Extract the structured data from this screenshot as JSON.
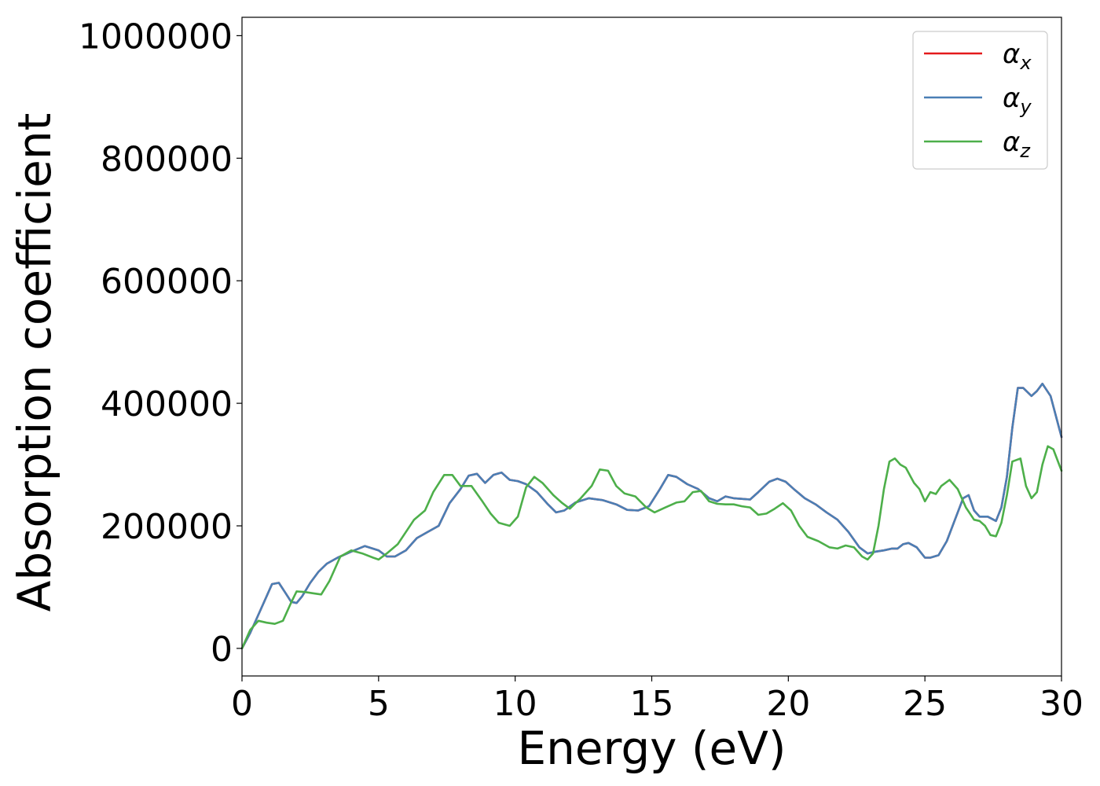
{
  "chart_data": {
    "type": "line",
    "title": "",
    "xlabel": "Energy (eV)",
    "ylabel": "Absorption coefficient",
    "xlim": [
      0,
      30
    ],
    "ylim": [
      -45000,
      1030000
    ],
    "xticks": [
      0,
      5,
      10,
      15,
      20,
      25,
      30
    ],
    "yticks": [
      0,
      200000,
      400000,
      600000,
      800000,
      1000000
    ],
    "grid": false,
    "legend_position": "top-right",
    "series": [
      {
        "name": "αx",
        "legend_base": "α",
        "legend_sub": "x",
        "color": "#e41a1c",
        "x": [
          0,
          0.3,
          0.6,
          0.9,
          1.1,
          1.35,
          1.6,
          1.8,
          2.0,
          2.2,
          2.5,
          2.8,
          3.1,
          3.5,
          4.0,
          4.5,
          5.0,
          5.3,
          5.6,
          6.0,
          6.4,
          6.8,
          7.2,
          7.6,
          8.0,
          8.3,
          8.6,
          8.9,
          9.2,
          9.5,
          9.8,
          10.1,
          10.4,
          10.8,
          11.2,
          11.5,
          11.8,
          12.2,
          12.7,
          13.2,
          13.7,
          14.1,
          14.5,
          14.9,
          15.3,
          15.6,
          15.9,
          16.3,
          16.7,
          17.1,
          17.4,
          17.7,
          18.0,
          18.3,
          18.6,
          18.9,
          19.3,
          19.6,
          19.9,
          20.2,
          20.6,
          21.0,
          21.4,
          21.8,
          22.2,
          22.6,
          22.9,
          23.2,
          23.5,
          23.8,
          24.0,
          24.2,
          24.4,
          24.7,
          25.0,
          25.2,
          25.5,
          25.8,
          26.1,
          26.4,
          26.6,
          26.8,
          27.0,
          27.3,
          27.6,
          27.8,
          28.0,
          28.2,
          28.4,
          28.6,
          28.9,
          29.1,
          29.3,
          29.6,
          30.0
        ],
        "y": [
          0,
          25000,
          55000,
          85000,
          105000,
          107000,
          90000,
          76000,
          74000,
          85000,
          107000,
          125000,
          138000,
          148000,
          158000,
          167000,
          160000,
          150000,
          150000,
          160000,
          180000,
          190000,
          200000,
          237000,
          260000,
          282000,
          285000,
          270000,
          283000,
          287000,
          275000,
          273000,
          268000,
          255000,
          235000,
          222000,
          225000,
          238000,
          245000,
          242000,
          235000,
          226000,
          225000,
          232000,
          260000,
          283000,
          280000,
          268000,
          260000,
          245000,
          240000,
          248000,
          245000,
          244000,
          243000,
          255000,
          272000,
          277000,
          272000,
          260000,
          245000,
          235000,
          222000,
          210000,
          190000,
          165000,
          155000,
          158000,
          160000,
          163000,
          163000,
          170000,
          172000,
          165000,
          148000,
          148000,
          152000,
          175000,
          210000,
          245000,
          250000,
          225000,
          215000,
          215000,
          208000,
          230000,
          280000,
          360000,
          425000,
          425000,
          412000,
          420000,
          432000,
          412000,
          345000
        ]
      },
      {
        "name": "αy",
        "legend_base": "α",
        "legend_sub": "y",
        "color": "#4a7fb5",
        "x": [
          0,
          0.3,
          0.6,
          0.9,
          1.1,
          1.35,
          1.6,
          1.8,
          2.0,
          2.2,
          2.5,
          2.8,
          3.1,
          3.5,
          4.0,
          4.5,
          5.0,
          5.3,
          5.6,
          6.0,
          6.4,
          6.8,
          7.2,
          7.6,
          8.0,
          8.3,
          8.6,
          8.9,
          9.2,
          9.5,
          9.8,
          10.1,
          10.4,
          10.8,
          11.2,
          11.5,
          11.8,
          12.2,
          12.7,
          13.2,
          13.7,
          14.1,
          14.5,
          14.9,
          15.3,
          15.6,
          15.9,
          16.3,
          16.7,
          17.1,
          17.4,
          17.7,
          18.0,
          18.3,
          18.6,
          18.9,
          19.3,
          19.6,
          19.9,
          20.2,
          20.6,
          21.0,
          21.4,
          21.8,
          22.2,
          22.6,
          22.9,
          23.2,
          23.5,
          23.8,
          24.0,
          24.2,
          24.4,
          24.7,
          25.0,
          25.2,
          25.5,
          25.8,
          26.1,
          26.4,
          26.6,
          26.8,
          27.0,
          27.3,
          27.6,
          27.8,
          28.0,
          28.2,
          28.4,
          28.6,
          28.9,
          29.1,
          29.3,
          29.6,
          30.0
        ],
        "y": [
          0,
          25000,
          55000,
          85000,
          105000,
          107000,
          90000,
          76000,
          74000,
          85000,
          107000,
          125000,
          138000,
          148000,
          158000,
          167000,
          160000,
          150000,
          150000,
          160000,
          180000,
          190000,
          200000,
          237000,
          260000,
          282000,
          285000,
          270000,
          283000,
          287000,
          275000,
          273000,
          268000,
          255000,
          235000,
          222000,
          225000,
          238000,
          245000,
          242000,
          235000,
          226000,
          225000,
          232000,
          260000,
          283000,
          280000,
          268000,
          260000,
          245000,
          240000,
          248000,
          245000,
          244000,
          243000,
          255000,
          272000,
          277000,
          272000,
          260000,
          245000,
          235000,
          222000,
          210000,
          190000,
          165000,
          155000,
          158000,
          160000,
          163000,
          163000,
          170000,
          172000,
          165000,
          148000,
          148000,
          152000,
          175000,
          210000,
          245000,
          250000,
          225000,
          215000,
          215000,
          208000,
          230000,
          280000,
          360000,
          425000,
          425000,
          412000,
          420000,
          432000,
          412000,
          345000
        ]
      },
      {
        "name": "αz",
        "legend_base": "α",
        "legend_sub": "z",
        "color": "#4daf4a",
        "x": [
          0,
          0.3,
          0.6,
          0.9,
          1.2,
          1.5,
          1.8,
          2.0,
          2.3,
          2.6,
          2.9,
          3.2,
          3.6,
          4.0,
          4.4,
          4.8,
          5.0,
          5.3,
          5.7,
          6.0,
          6.3,
          6.7,
          7.0,
          7.4,
          7.7,
          8.0,
          8.4,
          8.8,
          9.1,
          9.4,
          9.8,
          10.1,
          10.4,
          10.7,
          11.0,
          11.4,
          11.7,
          12.0,
          12.4,
          12.8,
          13.1,
          13.4,
          13.7,
          14.0,
          14.4,
          14.8,
          15.1,
          15.5,
          15.9,
          16.2,
          16.5,
          16.8,
          17.1,
          17.4,
          17.7,
          18.0,
          18.3,
          18.6,
          18.9,
          19.2,
          19.5,
          19.8,
          20.1,
          20.4,
          20.7,
          21.1,
          21.5,
          21.8,
          22.1,
          22.4,
          22.7,
          22.9,
          23.1,
          23.3,
          23.5,
          23.7,
          23.9,
          24.1,
          24.3,
          24.6,
          24.8,
          25.0,
          25.2,
          25.4,
          25.6,
          25.9,
          26.2,
          26.5,
          26.8,
          27.0,
          27.2,
          27.4,
          27.6,
          27.8,
          28.0,
          28.2,
          28.5,
          28.7,
          28.9,
          29.1,
          29.3,
          29.5,
          29.7,
          30.0
        ],
        "y": [
          0,
          30000,
          45000,
          42000,
          40000,
          45000,
          75000,
          93000,
          92000,
          90000,
          88000,
          110000,
          150000,
          160000,
          155000,
          148000,
          145000,
          155000,
          170000,
          190000,
          210000,
          225000,
          255000,
          283000,
          283000,
          265000,
          265000,
          240000,
          220000,
          205000,
          200000,
          215000,
          263000,
          280000,
          270000,
          250000,
          238000,
          228000,
          245000,
          265000,
          292000,
          290000,
          265000,
          253000,
          248000,
          230000,
          222000,
          230000,
          238000,
          240000,
          255000,
          257000,
          240000,
          236000,
          235000,
          235000,
          232000,
          230000,
          218000,
          220000,
          228000,
          237000,
          225000,
          200000,
          182000,
          175000,
          165000,
          163000,
          168000,
          165000,
          150000,
          145000,
          155000,
          200000,
          260000,
          305000,
          310000,
          300000,
          295000,
          270000,
          260000,
          240000,
          255000,
          252000,
          265000,
          275000,
          260000,
          230000,
          210000,
          208000,
          200000,
          185000,
          183000,
          205000,
          250000,
          305000,
          310000,
          265000,
          245000,
          255000,
          300000,
          330000,
          325000,
          290000
        ]
      }
    ]
  }
}
